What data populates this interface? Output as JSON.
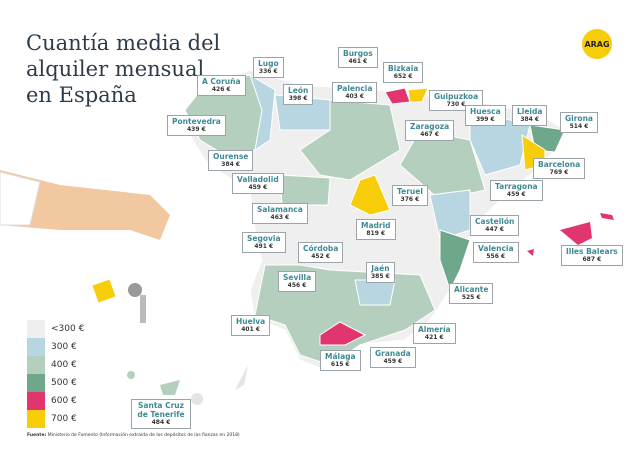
{
  "title": "Cuantía media del\nalquiler mensual\nen España",
  "logo": "ARAG",
  "legend": [
    {
      "label": "<300 €",
      "color": "#efefef"
    },
    {
      "label": "300 €",
      "color": "#b8d6e1"
    },
    {
      "label": "400 €",
      "color": "#b4cfbe"
    },
    {
      "label": "500 €",
      "color": "#6fa78a"
    },
    {
      "label": "600 €",
      "color": "#e0356f"
    },
    {
      "label": "700 €",
      "color": "#f7cd0a"
    }
  ],
  "provinces": [
    {
      "name": "Lugo",
      "value": "336 €"
    },
    {
      "name": "A Coruña",
      "value": "426 €"
    },
    {
      "name": "León",
      "value": "398 €"
    },
    {
      "name": "Burgos",
      "value": "461 €"
    },
    {
      "name": "Palencia",
      "value": "403 €"
    },
    {
      "name": "Bizkaia",
      "value": "652 €"
    },
    {
      "name": "Guipuzkoa",
      "value": "730 €"
    },
    {
      "name": "Pontevedra",
      "value": "439 €"
    },
    {
      "name": "Zaragoza",
      "value": "467 €"
    },
    {
      "name": "Huesca",
      "value": "399 €"
    },
    {
      "name": "Lleida",
      "value": "384 €"
    },
    {
      "name": "Girona",
      "value": "514 €"
    },
    {
      "name": "Ourense",
      "value": "384 €"
    },
    {
      "name": "Valladolid",
      "value": "459 €"
    },
    {
      "name": "Barcelona",
      "value": "769 €"
    },
    {
      "name": "Teruel",
      "value": "376 €"
    },
    {
      "name": "Tarragona",
      "value": "459 €"
    },
    {
      "name": "Salamanca",
      "value": "463 €"
    },
    {
      "name": "Madrid",
      "value": "819 €"
    },
    {
      "name": "Segovia",
      "value": "491 €"
    },
    {
      "name": "Castellón",
      "value": "447 €"
    },
    {
      "name": "Córdoba",
      "value": "452 €"
    },
    {
      "name": "Valencia",
      "value": "556 €"
    },
    {
      "name": "Illes Balears",
      "value": "687 €"
    },
    {
      "name": "Jaén",
      "value": "385 €"
    },
    {
      "name": "Sevilla",
      "value": "456 €"
    },
    {
      "name": "Alicante",
      "value": "525 €"
    },
    {
      "name": "Huelva",
      "value": "401 €"
    },
    {
      "name": "Almería",
      "value": "421 €"
    },
    {
      "name": "Málaga",
      "value": "615 €"
    },
    {
      "name": "Granada",
      "value": "459 €"
    },
    {
      "name": "Santa Cruz de Tenerife",
      "value": "484 €"
    }
  ],
  "source_label": "Fuente:",
  "source": "Ministerio de Fomento (Información extraída de los depósitos de las fianzas en 2018)"
}
